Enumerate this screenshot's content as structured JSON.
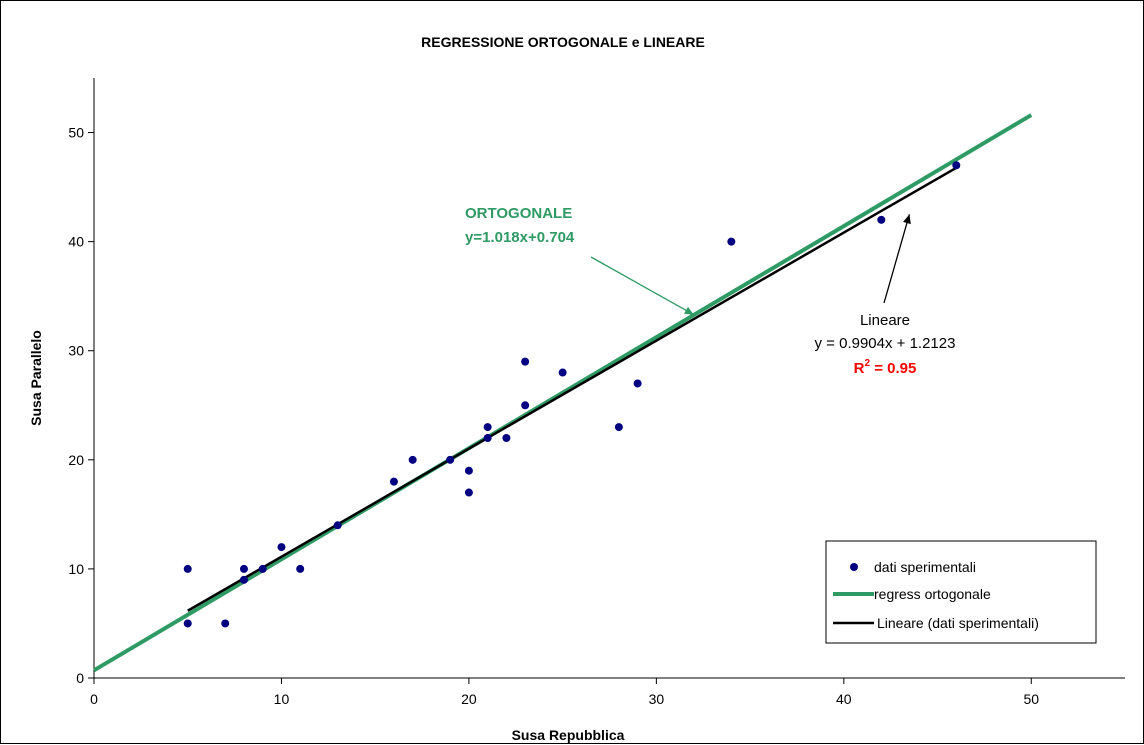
{
  "chart_data": {
    "type": "scatter",
    "title": "REGRESSIONE ORTOGONALE e LINEARE",
    "xlabel": "Susa Repubblica",
    "ylabel": "Susa Parallelo",
    "xlim": [
      0,
      55
    ],
    "ylim": [
      0,
      55
    ],
    "xticks": [
      0,
      10,
      20,
      30,
      40,
      50
    ],
    "yticks": [
      0,
      10,
      20,
      30,
      40,
      50
    ],
    "grid": false,
    "legend_position": "bottom-right",
    "series": [
      {
        "name": "dati sperimentali",
        "kind": "scatter",
        "color": "#000080",
        "points": [
          [
            5,
            10
          ],
          [
            5,
            5
          ],
          [
            7,
            5
          ],
          [
            8,
            10
          ],
          [
            8,
            9
          ],
          [
            9,
            10
          ],
          [
            10,
            12
          ],
          [
            11,
            10
          ],
          [
            13,
            14
          ],
          [
            16,
            18
          ],
          [
            17,
            20
          ],
          [
            19,
            20
          ],
          [
            20,
            19
          ],
          [
            20,
            17
          ],
          [
            21,
            23
          ],
          [
            21,
            22
          ],
          [
            22,
            22
          ],
          [
            23,
            29
          ],
          [
            23,
            25
          ],
          [
            25,
            28
          ],
          [
            28,
            23
          ],
          [
            29,
            27
          ],
          [
            34,
            40
          ],
          [
            42,
            42
          ],
          [
            46,
            47
          ]
        ]
      },
      {
        "name": "regress ortogonale",
        "kind": "line",
        "color": "#2e9a64",
        "points": [
          [
            0,
            0.704
          ],
          [
            50,
            51.604
          ]
        ]
      },
      {
        "name": "Lineare (dati sperimentali)",
        "kind": "line",
        "color": "#000000",
        "points": [
          [
            5,
            6.164
          ],
          [
            46,
            46.771
          ]
        ]
      }
    ],
    "annotations": {
      "ortogonale": {
        "title": "ORTOGONALE",
        "equation": "y=1.018x+0.704",
        "color": "#2e9a64",
        "arrow_to": [
          32,
          33.3
        ]
      },
      "lineare": {
        "title": "Lineare",
        "equation": "y = 0.9904x + 1.2123",
        "r2_base": "R",
        "r2_sup": "2",
        "r2_rest": " = 0.95",
        "r2_color": "#ff0000",
        "arrow_to": [
          43.5,
          42.5
        ]
      }
    }
  }
}
